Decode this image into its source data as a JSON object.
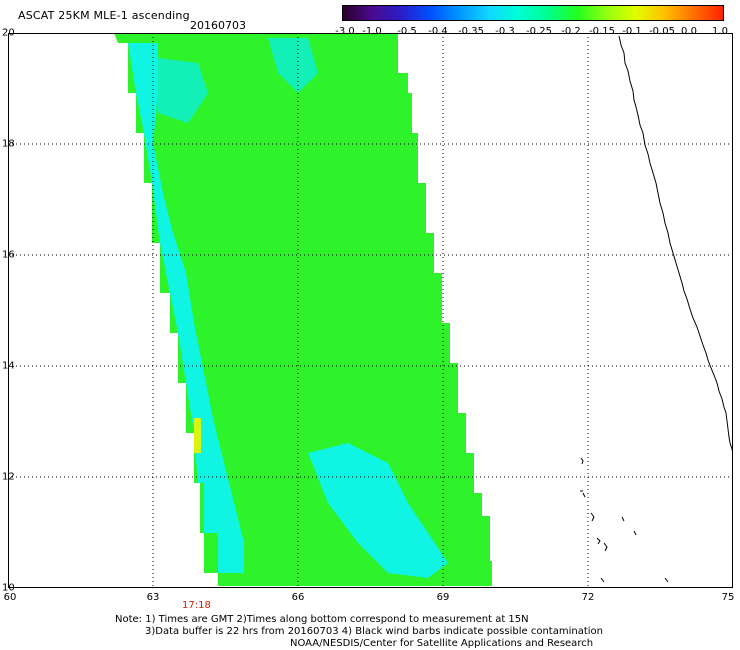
{
  "header": {
    "title": "ASCAT 25KM MLE-1 ascending",
    "date": "20160703"
  },
  "colorbar": {
    "tick_labels": [
      "-3.0",
      "-1.0",
      "-0.5",
      "-0.4",
      "-0.35",
      "-0.3",
      "-0.25",
      "-0.2",
      "-0.15",
      "-0.1",
      "-0.05",
      "0.0",
      "1.0"
    ],
    "colors": [
      "#2a0028",
      "#4b0a8f",
      "#2a1ec8",
      "#0050ff",
      "#0098ff",
      "#10d8ff",
      "#00ffd6",
      "#00ff90",
      "#20ff20",
      "#90ff10",
      "#e0ff00",
      "#ffc000",
      "#ff7000",
      "#ff2000"
    ]
  },
  "axes": {
    "lat_labels": [
      "20",
      "18",
      "16",
      "14",
      "12",
      "10"
    ],
    "lon_labels": [
      "60",
      "63",
      "66",
      "69",
      "72",
      "75"
    ]
  },
  "swath": {
    "time_label": "17:18",
    "fill_colors": {
      "main": "#2ef22a",
      "cyan": "#10f4e4",
      "teal": "#12f0b8",
      "yellow": "#d8f510"
    }
  },
  "footer": {
    "line1": "Note: 1) Times are GMT 2)Times along bottom correspond to measurement at 15N",
    "line2": "3)Data buffer is 22 hrs from 20160703 4) Black wind barbs indicate possible contamination",
    "line3": "NOAA/NESDIS/Center for Satellite Applications and Research"
  }
}
